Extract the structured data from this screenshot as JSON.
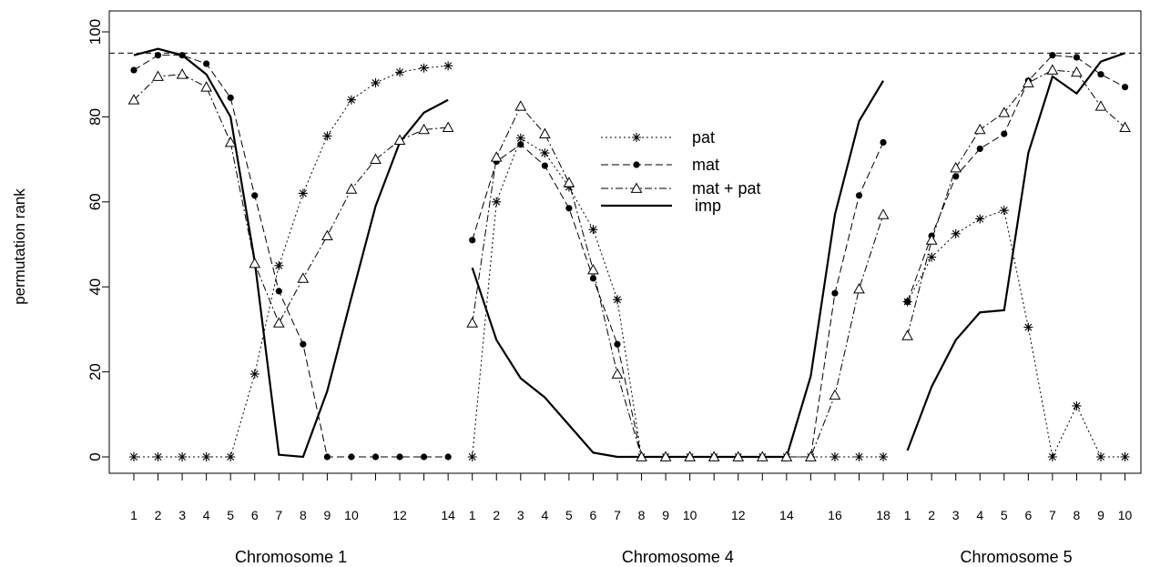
{
  "chart_data": {
    "type": "line",
    "ylabel": "permutation rank",
    "ylim": [
      0,
      100
    ],
    "yticks": [
      0,
      20,
      40,
      60,
      80,
      100
    ],
    "threshold": 95,
    "grid": false,
    "legend_position": "center",
    "legend_entries": [
      "pat",
      "mat",
      "mat + pat",
      "imp"
    ],
    "groups": [
      {
        "label": "Chromosome 1",
        "x": [
          1,
          2,
          3,
          4,
          5,
          6,
          7,
          8,
          9,
          10,
          11,
          12,
          13,
          14
        ],
        "tick_labels": [
          "1",
          "2",
          "3",
          "4",
          "5",
          "6",
          "7",
          "8",
          "9",
          "10",
          "",
          "12",
          "",
          "14"
        ],
        "series": {
          "pat": [
            0,
            0,
            0,
            0,
            0,
            19.5,
            45,
            62,
            75.5,
            84,
            88,
            90.5,
            91.5,
            92
          ],
          "mat": [
            91,
            94.5,
            94.5,
            92.5,
            84.5,
            61.5,
            39,
            26.5,
            0,
            0,
            0,
            0,
            0,
            0
          ],
          "mat_pat": [
            84,
            89.5,
            90,
            87,
            74,
            45.5,
            31.5,
            42,
            52,
            63,
            70,
            74.5,
            77,
            77.5
          ],
          "imp": [
            94.5,
            96,
            94.5,
            90,
            80,
            46,
            0.5,
            0,
            15.5,
            37.5,
            59,
            74,
            81,
            84
          ]
        }
      },
      {
        "label": "Chromosome 4",
        "x": [
          1,
          2,
          3,
          4,
          5,
          6,
          7,
          8,
          9,
          10,
          11,
          12,
          13,
          14,
          15,
          16,
          17,
          18
        ],
        "tick_labels": [
          "1",
          "2",
          "3",
          "4",
          "5",
          "6",
          "7",
          "8",
          "9",
          "10",
          "",
          "12",
          "",
          "14",
          "",
          "16",
          "",
          "18"
        ],
        "series": {
          "pat": [
            0,
            60,
            75,
            71.5,
            63.5,
            53.5,
            37,
            0,
            0,
            0,
            0,
            0,
            0,
            0,
            0,
            0,
            0,
            0
          ],
          "mat": [
            51,
            69.5,
            73.5,
            68.5,
            58.5,
            42,
            26.5,
            0,
            0,
            0,
            0,
            0,
            0,
            0,
            0,
            38.5,
            61.5,
            74
          ],
          "mat_pat": [
            31.5,
            70.5,
            82.5,
            76,
            64.5,
            44,
            19.5,
            0,
            0,
            0,
            0,
            0,
            0,
            0,
            0,
            14.5,
            39.5,
            57
          ],
          "imp": [
            44.5,
            27.5,
            18.5,
            14,
            7.5,
            1,
            0,
            0,
            0,
            0,
            0,
            0,
            0,
            0,
            19,
            57,
            79,
            88.5
          ]
        }
      },
      {
        "label": "Chromosome 5",
        "x": [
          1,
          2,
          3,
          4,
          5,
          6,
          7,
          8,
          9,
          10
        ],
        "tick_labels": [
          "1",
          "2",
          "3",
          "4",
          "5",
          "6",
          "7",
          "8",
          "9",
          "10"
        ],
        "series": {
          "pat": [
            36.5,
            47,
            52.5,
            56,
            58,
            30.5,
            0,
            12,
            0,
            0
          ],
          "mat": [
            36.5,
            52,
            66,
            72.5,
            76,
            88.5,
            94.5,
            94,
            90,
            87
          ],
          "mat_pat": [
            28.5,
            51,
            68,
            77,
            81,
            88,
            91,
            90.5,
            82.5,
            77.5
          ],
          "imp": [
            1.5,
            16.5,
            27.5,
            34,
            34.5,
            71.5,
            89.5,
            85.5,
            93,
            95
          ]
        }
      }
    ]
  }
}
